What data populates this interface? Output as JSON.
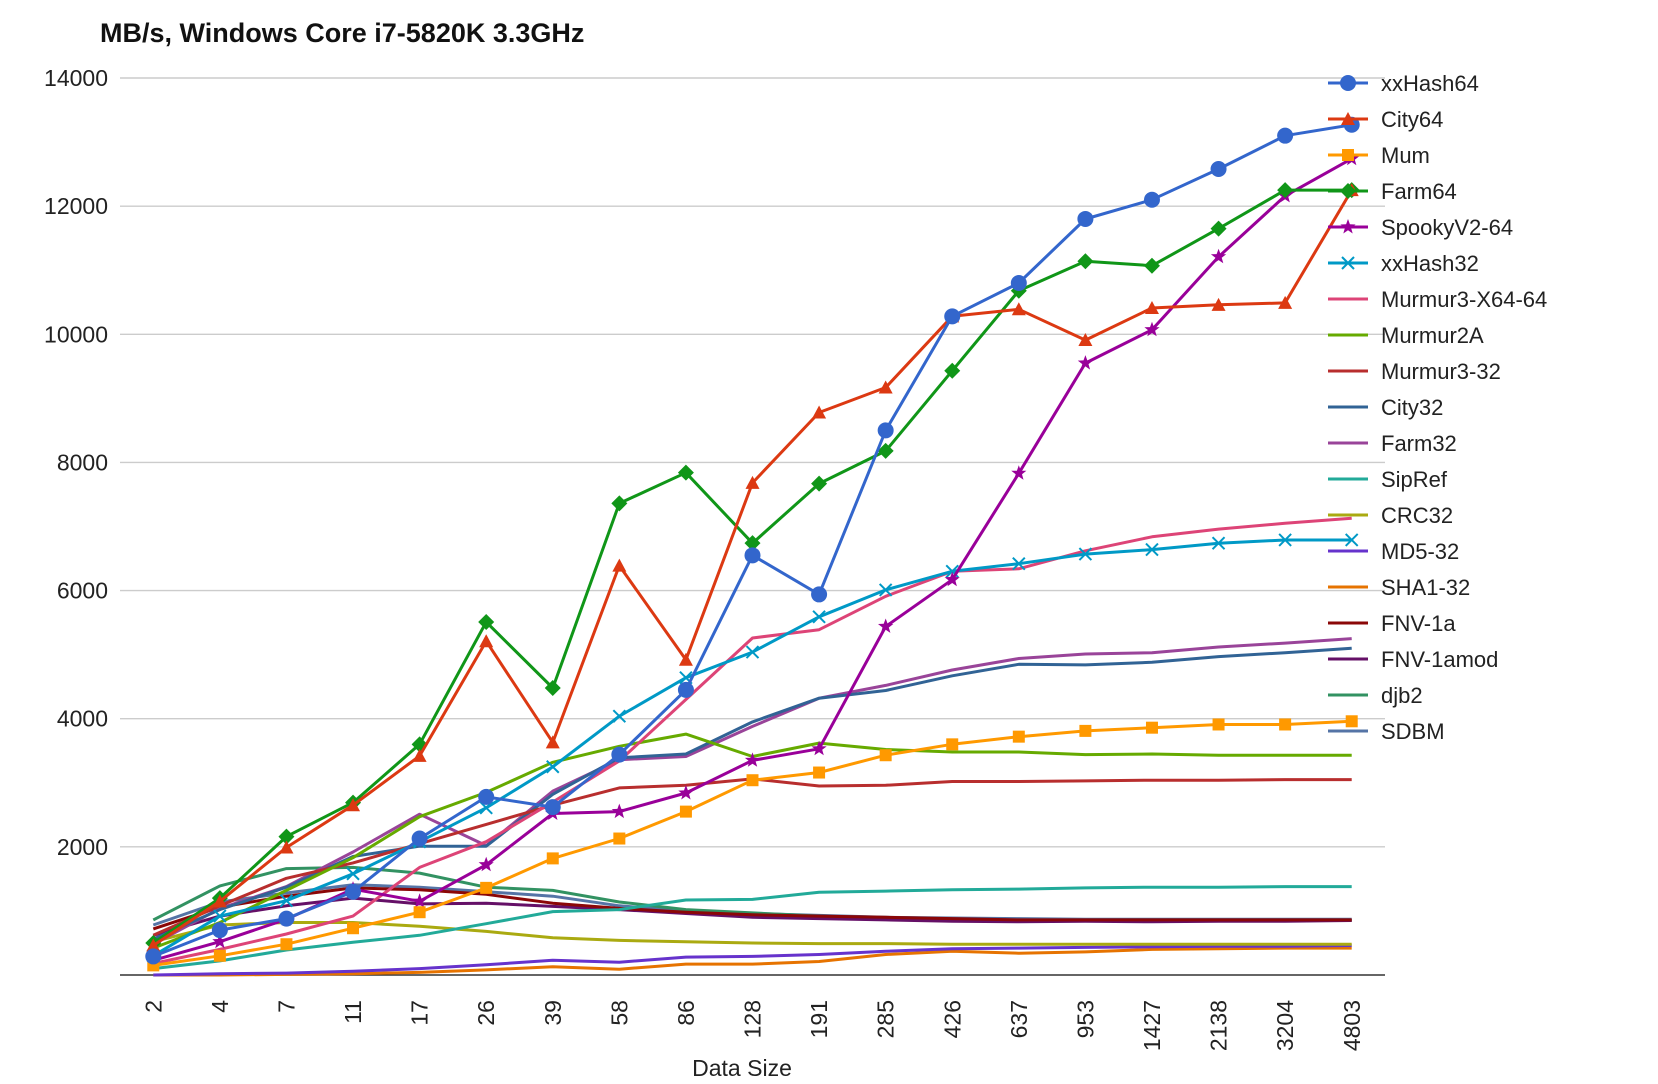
{
  "chart_data": {
    "type": "line",
    "title": "MB/s, Windows Core i7-5820K 3.3GHz",
    "xlabel": "Data Size",
    "ylabel": "",
    "ylim": [
      0,
      14000
    ],
    "yticks": [
      2000,
      4000,
      6000,
      8000,
      10000,
      12000,
      14000
    ],
    "grid": true,
    "legend": "right",
    "categories": [
      "2",
      "4",
      "7",
      "11",
      "17",
      "26",
      "39",
      "58",
      "86",
      "128",
      "191",
      "285",
      "426",
      "637",
      "953",
      "1427",
      "2138",
      "3204",
      "4803"
    ],
    "series": [
      {
        "name": "xxHash64",
        "color": "#3366cc",
        "marker": "circle",
        "values": [
          290,
          700,
          880,
          1300,
          2130,
          2780,
          2620,
          3440,
          4450,
          6550,
          5940,
          8500,
          10280,
          10800,
          11800,
          12100,
          12580,
          13100,
          13270
        ]
      },
      {
        "name": "City64",
        "color": "#dc3912",
        "marker": "triangle",
        "values": [
          460,
          1150,
          1990,
          2650,
          3420,
          5210,
          3630,
          6390,
          4920,
          7680,
          8780,
          9170,
          10280,
          10390,
          9910,
          10410,
          10460,
          10490,
          12250
        ]
      },
      {
        "name": "Mum",
        "color": "#ff9900",
        "marker": "square",
        "values": [
          150,
          300,
          480,
          730,
          980,
          1360,
          1820,
          2130,
          2550,
          3040,
          3160,
          3430,
          3600,
          3720,
          3810,
          3860,
          3910,
          3910,
          3960
        ]
      },
      {
        "name": "Farm64",
        "color": "#109618",
        "marker": "diamond",
        "values": [
          500,
          1200,
          2160,
          2690,
          3600,
          5510,
          4480,
          7360,
          7840,
          6740,
          7670,
          8180,
          9430,
          10680,
          11140,
          11070,
          11650,
          12250,
          12250
        ]
      },
      {
        "name": "SpookyV2-64",
        "color": "#990099",
        "marker": "star",
        "values": [
          230,
          520,
          870,
          1340,
          1150,
          1720,
          2520,
          2550,
          2840,
          3350,
          3530,
          5440,
          6170,
          7830,
          9550,
          10070,
          11210,
          12160,
          12740
        ]
      },
      {
        "name": "xxHash32",
        "color": "#0099c6",
        "marker": "x",
        "values": [
          300,
          920,
          1160,
          1580,
          2080,
          2610,
          3250,
          4040,
          4640,
          5040,
          5590,
          6010,
          6300,
          6420,
          6570,
          6640,
          6740,
          6790,
          6790
        ]
      },
      {
        "name": "Murmur3-X64-64",
        "color": "#dd4477",
        "marker": "none",
        "values": [
          180,
          400,
          640,
          920,
          1680,
          2080,
          2700,
          3340,
          4300,
          5260,
          5390,
          5910,
          6300,
          6340,
          6620,
          6840,
          6960,
          7050,
          7130
        ]
      },
      {
        "name": "Murmur2A",
        "color": "#66aa00",
        "marker": "none",
        "values": [
          420,
          820,
          1320,
          1830,
          2470,
          2850,
          3320,
          3570,
          3760,
          3410,
          3620,
          3520,
          3480,
          3480,
          3440,
          3450,
          3430,
          3430,
          3430
        ]
      },
      {
        "name": "Murmur3-32",
        "color": "#b82e2e",
        "marker": "none",
        "values": [
          620,
          1080,
          1510,
          1750,
          2050,
          2350,
          2650,
          2920,
          2960,
          3060,
          2950,
          2960,
          3020,
          3020,
          3030,
          3040,
          3040,
          3050,
          3050
        ]
      },
      {
        "name": "City32",
        "color": "#316395",
        "marker": "none",
        "values": [
          560,
          1020,
          1370,
          1850,
          2010,
          2010,
          2820,
          3390,
          3450,
          3950,
          4320,
          4440,
          4670,
          4850,
          4840,
          4880,
          4970,
          5030,
          5100
        ]
      },
      {
        "name": "Farm32",
        "color": "#994499",
        "marker": "none",
        "values": [
          480,
          1040,
          1380,
          1920,
          2510,
          2020,
          2870,
          3360,
          3410,
          3880,
          4320,
          4520,
          4760,
          4940,
          5010,
          5030,
          5120,
          5180,
          5250
        ]
      },
      {
        "name": "SipRef",
        "color": "#22aa99",
        "marker": "none",
        "values": [
          100,
          220,
          390,
          510,
          620,
          800,
          990,
          1020,
          1170,
          1180,
          1290,
          1310,
          1330,
          1340,
          1360,
          1370,
          1370,
          1380,
          1380
        ]
      },
      {
        "name": "CRC32",
        "color": "#aaaa11",
        "marker": "none",
        "values": [
          520,
          780,
          820,
          820,
          760,
          680,
          580,
          540,
          520,
          500,
          490,
          490,
          480,
          480,
          480,
          480,
          480,
          480,
          480
        ]
      },
      {
        "name": "MD5-32",
        "color": "#6633cc",
        "marker": "none",
        "values": [
          0,
          20,
          30,
          60,
          100,
          160,
          230,
          200,
          280,
          290,
          320,
          370,
          410,
          420,
          430,
          440,
          450,
          450,
          460
        ]
      },
      {
        "name": "SHA1-32",
        "color": "#e67300",
        "marker": "none",
        "values": [
          0,
          0,
          10,
          20,
          40,
          80,
          130,
          90,
          170,
          170,
          210,
          320,
          370,
          340,
          360,
          400,
          410,
          420,
          420
        ]
      },
      {
        "name": "FNV-1a",
        "color": "#8b0707",
        "marker": "none",
        "values": [
          720,
          1060,
          1230,
          1360,
          1330,
          1260,
          1120,
          1040,
          980,
          940,
          920,
          900,
          880,
          860,
          860,
          860,
          860,
          860,
          860
        ]
      },
      {
        "name": "FNV-1amod",
        "color": "#651067",
        "marker": "none",
        "values": [
          620,
          920,
          1080,
          1200,
          1110,
          1120,
          1070,
          1020,
          960,
          900,
          880,
          860,
          840,
          830,
          840,
          830,
          840,
          840,
          850
        ]
      },
      {
        "name": "djb2",
        "color": "#329262",
        "marker": "none",
        "values": [
          860,
          1390,
          1660,
          1680,
          1590,
          1370,
          1320,
          1140,
          1020,
          970,
          920,
          880,
          860,
          850,
          850,
          850,
          850,
          850,
          850
        ]
      },
      {
        "name": "SDBM",
        "color": "#5574a6",
        "marker": "none",
        "values": [
          780,
          1140,
          1280,
          1410,
          1370,
          1300,
          1230,
          1080,
          1000,
          960,
          930,
          900,
          890,
          880,
          870,
          870,
          870,
          870,
          870
        ]
      }
    ]
  }
}
